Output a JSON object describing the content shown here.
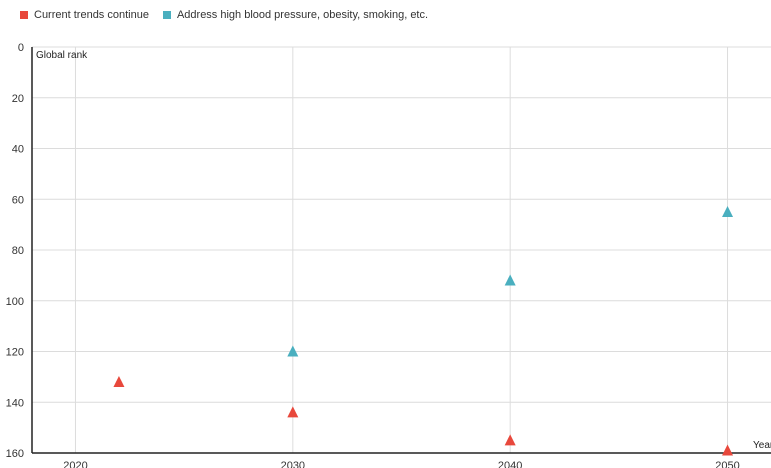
{
  "chart_data": {
    "type": "scatter",
    "ylabel": "Global rank",
    "xlabel": "Year",
    "xlim": [
      2018,
      2052
    ],
    "ylim": [
      0,
      160
    ],
    "y_inverted": true,
    "x_ticks": [
      2020,
      2030,
      2040,
      2050
    ],
    "y_ticks": [
      0,
      20,
      40,
      60,
      80,
      100,
      120,
      140,
      160
    ],
    "grid": true,
    "legend_position": "top-left",
    "marker": "triangle",
    "series": [
      {
        "name": "Current trends continue",
        "color": "#e8483c",
        "points": [
          {
            "x": 2022,
            "y": 132
          },
          {
            "x": 2030,
            "y": 144
          },
          {
            "x": 2040,
            "y": 155
          },
          {
            "x": 2050,
            "y": 159
          }
        ]
      },
      {
        "name": "Address high blood pressure, obesity, smoking, etc.",
        "color": "#4aafbf",
        "points": [
          {
            "x": 2030,
            "y": 120
          },
          {
            "x": 2040,
            "y": 92
          },
          {
            "x": 2050,
            "y": 65
          }
        ]
      }
    ]
  }
}
